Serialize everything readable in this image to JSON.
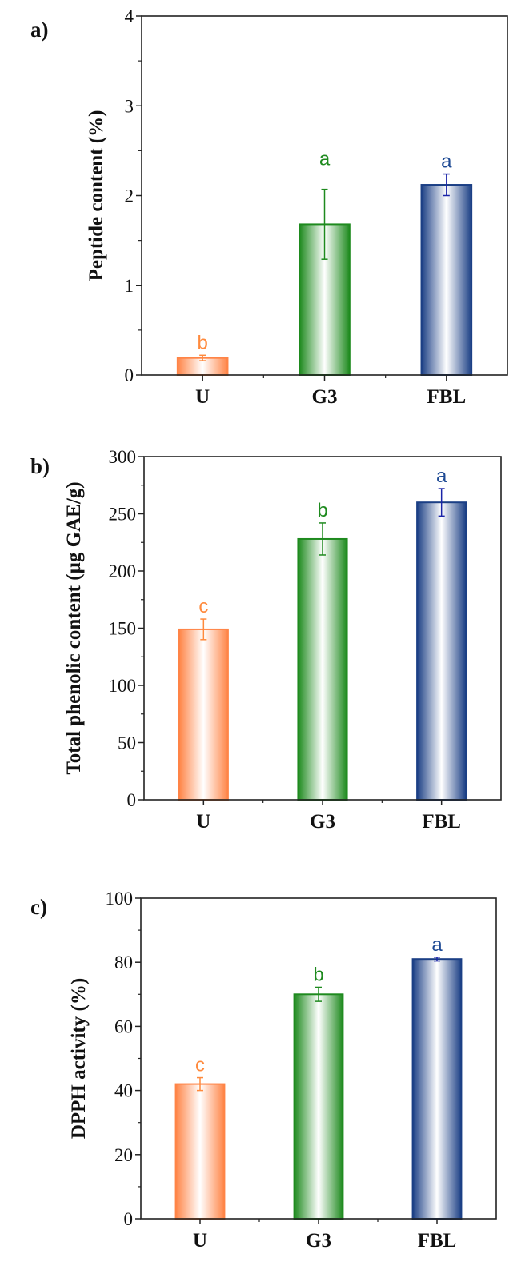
{
  "chart_data": [
    {
      "type": "bar",
      "panel_label": "a)",
      "categories": [
        "U",
        "G3",
        "FBL"
      ],
      "values": [
        0.19,
        1.68,
        2.12
      ],
      "errors": [
        0.03,
        0.39,
        0.12
      ],
      "significance": [
        "b",
        "a",
        "a"
      ],
      "xlabel": "",
      "ylabel": "Peptide content (%)",
      "ylim": [
        0,
        4
      ],
      "yticks": [
        0,
        1,
        2,
        3,
        4
      ],
      "yminor": 0.5,
      "grid": false
    },
    {
      "type": "bar",
      "panel_label": "b)",
      "categories": [
        "U",
        "G3",
        "FBL"
      ],
      "values": [
        149,
        228,
        260
      ],
      "errors": [
        9,
        14,
        12
      ],
      "significance": [
        "c",
        "b",
        "a"
      ],
      "xlabel": "",
      "ylabel": "Total phenolic content (µg GAE/g)",
      "ylim": [
        0,
        300
      ],
      "yticks": [
        0,
        50,
        100,
        150,
        200,
        250,
        300
      ],
      "yminor": 25,
      "grid": false
    },
    {
      "type": "bar",
      "panel_label": "c)",
      "categories": [
        "U",
        "G3",
        "FBL"
      ],
      "values": [
        42,
        70,
        81
      ],
      "errors": [
        2,
        2.2,
        0.6
      ],
      "significance": [
        "c",
        "b",
        "a"
      ],
      "xlabel": "",
      "ylabel": "DPPH activity (%)",
      "ylim": [
        0,
        100
      ],
      "yticks": [
        0,
        20,
        40,
        60,
        80,
        100
      ],
      "yminor": 10,
      "grid": false
    }
  ],
  "colors": {
    "bars": [
      "#FF8446",
      "#1E8A1E",
      "#1B3F85"
    ],
    "letters": [
      "#FF8A3D",
      "#1E8A1E",
      "#1E4A94"
    ],
    "errorbars": [
      "#FF8A3D",
      "#1E8A1E",
      "#1A24A8"
    ]
  }
}
